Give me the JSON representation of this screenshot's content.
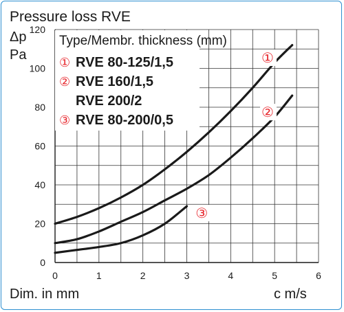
{
  "chart_data": {
    "type": "line",
    "title": "Pressure loss RVE",
    "ylabel_symbol": "Δp",
    "ylabel_unit": "Pa",
    "xlabel_left": "Dim. in mm",
    "xlabel_right": "c m/s",
    "xlim": [
      0,
      6
    ],
    "ylim": [
      0,
      120
    ],
    "x_ticks": [
      0,
      1,
      2,
      3,
      4,
      5,
      6
    ],
    "y_ticks": [
      0,
      20,
      40,
      60,
      80,
      100,
      120
    ],
    "grid": true,
    "legend": {
      "title": "Type/Membr. thickness (mm)",
      "entries": [
        {
          "marker": "①",
          "label": "RVE 80-125/1,5"
        },
        {
          "marker": "②",
          "label": "RVE 160/1,5"
        },
        {
          "marker": "",
          "label": "RVE 200/2"
        },
        {
          "marker": "③",
          "label": "RVE 80-200/0,5"
        }
      ]
    },
    "series": [
      {
        "marker": "①",
        "line_color": "#1a1a1a",
        "marker_color": "#e8282e",
        "x": [
          0,
          0.5,
          1,
          1.5,
          2,
          2.5,
          3,
          3.5,
          4,
          4.5,
          5,
          5.4
        ],
        "y": [
          20,
          23.5,
          28,
          33.5,
          40,
          48,
          57,
          67,
          78,
          90,
          103,
          112
        ]
      },
      {
        "marker": "②",
        "line_color": "#1a1a1a",
        "marker_color": "#e8282e",
        "x": [
          0,
          0.5,
          1,
          1.5,
          2,
          2.5,
          3,
          3.5,
          4,
          4.5,
          5,
          5.4
        ],
        "y": [
          10,
          12,
          16,
          21,
          26,
          32,
          38,
          45,
          54,
          64,
          75,
          86
        ]
      },
      {
        "marker": "③",
        "line_color": "#1a1a1a",
        "marker_color": "#e8282e",
        "x": [
          0,
          0.5,
          1,
          1.5,
          2,
          2.5,
          3
        ],
        "y": [
          5,
          6.5,
          8,
          10,
          14,
          20,
          29
        ]
      }
    ],
    "curve_markers": [
      {
        "marker": "①",
        "x": 4.7,
        "y": 103
      },
      {
        "marker": "②",
        "x": 4.7,
        "y": 75
      },
      {
        "marker": "③",
        "x": 3.2,
        "y": 23
      }
    ]
  }
}
